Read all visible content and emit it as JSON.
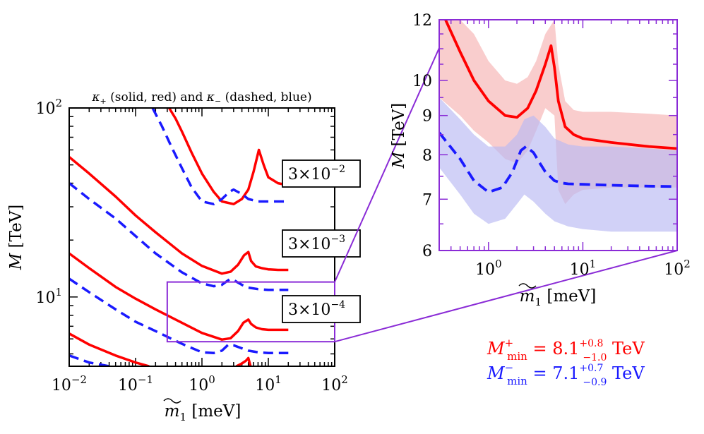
{
  "colors": {
    "red": "#ff0000",
    "blue": "#1a1aff",
    "purple": "#8a2bd6",
    "red_band": "#f6b2b2",
    "blue_band": "#b8b8f3"
  },
  "chart_data": [
    {
      "type": "line",
      "title_parts": {
        "kp": "κ",
        "kp_sub": "+",
        "mid": " (solid, red) and ",
        "km": "κ",
        "km_sub": "−",
        "end": " (dashed, blue)"
      },
      "xlabel": {
        "main": "m",
        "sub": "1",
        "unit": " [meV]"
      },
      "ylabel": {
        "main": "M",
        "unit": " [TeV]"
      },
      "xscale": "log",
      "yscale": "log",
      "xlim": [
        0.01,
        100
      ],
      "ylim": [
        4.3,
        100
      ],
      "x_ticks": [
        {
          "v": 0.01,
          "base": "10",
          "exp": "−2"
        },
        {
          "v": 0.1,
          "base": "10",
          "exp": "−1"
        },
        {
          "v": 1,
          "base": "10",
          "exp": "0"
        },
        {
          "v": 10,
          "base": "10",
          "exp": "1"
        },
        {
          "v": 100,
          "base": "10",
          "exp": "2"
        }
      ],
      "y_ticks": [
        {
          "v": 10,
          "base": "10",
          "exp": "1"
        },
        {
          "v": 100,
          "base": "10",
          "exp": "2"
        }
      ],
      "series": [
        {
          "name": "κ+ 3e-2",
          "style": "solid",
          "color": "red",
          "x": [
            0.32,
            0.4,
            0.5,
            0.7,
            1.0,
            1.5,
            2.0,
            3.0,
            4.0,
            5.0,
            6.0,
            7.2,
            8.5,
            10,
            14,
            20
          ],
          "y": [
            100,
            88,
            75,
            58,
            45,
            36,
            32,
            31,
            33,
            37,
            46,
            60,
            50,
            43,
            40,
            39
          ]
        },
        {
          "name": "κ− 3e-2",
          "style": "dashed",
          "color": "blue",
          "x": [
            0.18,
            0.25,
            0.35,
            0.5,
            0.7,
            1.0,
            1.5,
            2.0,
            2.6,
            3.0,
            4.0,
            5.0,
            7.0,
            10,
            14,
            20
          ],
          "y": [
            100,
            80,
            62,
            48,
            38,
            32,
            31,
            33,
            36,
            37,
            35,
            33,
            32,
            32,
            32,
            32
          ]
        },
        {
          "name": "κ+ 3e-3",
          "style": "solid",
          "color": "red",
          "x": [
            0.01,
            0.02,
            0.05,
            0.1,
            0.2,
            0.5,
            1.0,
            2.0,
            2.7,
            3.5,
            4.3,
            5.0,
            5.5,
            6.5,
            8,
            10,
            14,
            20
          ],
          "y": [
            55,
            45,
            34,
            27,
            22,
            17,
            14.6,
            13.3,
            13.6,
            14.8,
            16.6,
            17.3,
            15.5,
            14.5,
            14.2,
            14.0,
            13.9,
            13.9
          ]
        },
        {
          "name": "κ− 3e-3",
          "style": "dashed",
          "color": "blue",
          "x": [
            0.01,
            0.02,
            0.05,
            0.1,
            0.2,
            0.5,
            1.0,
            1.5,
            2.0,
            2.6,
            3.0,
            4.0,
            5.0,
            7.0,
            10,
            14,
            20
          ],
          "y": [
            40,
            33,
            26,
            21,
            17,
            13.5,
            11.8,
            11.4,
            11.6,
            12.4,
            12.3,
            11.6,
            11.2,
            11.0,
            10.9,
            10.9,
            10.9
          ]
        },
        {
          "name": "κ+ 3e-4",
          "style": "solid",
          "color": "red",
          "x": [
            0.01,
            0.02,
            0.05,
            0.1,
            0.2,
            0.5,
            1.0,
            2.0,
            2.7,
            3.5,
            4.2,
            5.0,
            5.5,
            6.5,
            8,
            10,
            14,
            20
          ],
          "y": [
            17,
            14.2,
            11.3,
            9.8,
            8.6,
            7.3,
            6.45,
            5.95,
            6.05,
            6.6,
            7.3,
            7.6,
            7.2,
            6.9,
            6.75,
            6.7,
            6.7,
            6.7
          ]
        },
        {
          "name": "κ− 3e-4",
          "style": "dashed",
          "color": "blue",
          "x": [
            0.01,
            0.02,
            0.05,
            0.1,
            0.2,
            0.5,
            1.0,
            1.5,
            2.0,
            2.5,
            3.0,
            4.0,
            5.0,
            7.0,
            10,
            14,
            20
          ],
          "y": [
            12.5,
            10.6,
            8.6,
            7.4,
            6.6,
            5.65,
            5.1,
            5.05,
            5.2,
            5.6,
            5.55,
            5.35,
            5.2,
            5.1,
            5.05,
            5.05,
            5.05
          ]
        },
        {
          "name": "κ+ 3e-5",
          "style": "solid",
          "color": "red",
          "x": [
            0.01,
            0.02,
            0.05,
            0.1,
            0.16
          ],
          "y": [
            6.4,
            5.6,
            4.9,
            4.5,
            4.3
          ]
        },
        {
          "name": "κ+ 3e-5 (tail)",
          "style": "solid",
          "color": "red",
          "x": [
            3.3,
            4.0,
            4.6,
            5.0,
            5.4
          ],
          "y": [
            4.3,
            4.45,
            4.6,
            4.75,
            4.3
          ]
        },
        {
          "name": "κ− 3e-5",
          "style": "dashed",
          "color": "blue",
          "x": [
            0.01,
            0.02,
            0.04
          ],
          "y": [
            4.9,
            4.5,
            4.3
          ]
        }
      ],
      "labels": [
        {
          "text": "3×10",
          "exp": "−2",
          "at_y": 32
        },
        {
          "text": "3×10",
          "exp": "−3",
          "at_y": 12.2
        },
        {
          "text": "3×10",
          "exp": "−4",
          "at_y": 5.9
        }
      ],
      "zoom_box": {
        "x": [
          0.3,
          100
        ],
        "y": [
          5.8,
          12.0
        ]
      }
    },
    {
      "type": "line",
      "subtype": "inset-zoom",
      "xlabel": {
        "main": "m",
        "sub": "1",
        "unit": " [meV]"
      },
      "ylabel": {
        "main": "M",
        "unit": " [TeV]"
      },
      "xscale": "log",
      "yscale": "log",
      "xlim": [
        0.3,
        100
      ],
      "ylim": [
        6,
        12
      ],
      "x_ticks": [
        {
          "v": 1,
          "base": "10",
          "exp": "0"
        },
        {
          "v": 10,
          "base": "10",
          "exp": "1"
        },
        {
          "v": 100,
          "base": "10",
          "exp": "2"
        }
      ],
      "y_ticks": [
        {
          "v": 6,
          "label": "6"
        },
        {
          "v": 7,
          "label": "7"
        },
        {
          "v": 8,
          "label": "8"
        },
        {
          "v": 9,
          "label": "9"
        },
        {
          "v": 10,
          "label": "10"
        },
        {
          "v": 12,
          "label": "12"
        }
      ],
      "series": [
        {
          "name": "κ+ central",
          "style": "solid",
          "color": "red",
          "x": [
            0.35,
            0.5,
            0.7,
            1.0,
            1.5,
            2.0,
            2.6,
            3.2,
            4.0,
            4.6,
            5.0,
            5.5,
            6.5,
            8,
            10,
            20,
            50,
            100
          ],
          "y": [
            12.0,
            10.9,
            10.0,
            9.4,
            9.0,
            8.95,
            9.2,
            9.7,
            10.5,
            11.1,
            10.4,
            9.4,
            8.7,
            8.5,
            8.4,
            8.3,
            8.2,
            8.15
          ]
        },
        {
          "name": "κ− central",
          "style": "dashed",
          "color": "blue",
          "x": [
            0.3,
            0.5,
            0.7,
            1.0,
            1.4,
            1.8,
            2.2,
            2.5,
            3.0,
            3.5,
            4.0,
            5.0,
            6.0,
            7.0,
            10,
            20,
            50,
            100
          ],
          "y": [
            8.55,
            7.9,
            7.4,
            7.15,
            7.25,
            7.6,
            8.1,
            8.2,
            8.05,
            7.8,
            7.6,
            7.4,
            7.35,
            7.33,
            7.32,
            7.3,
            7.28,
            7.27
          ]
        }
      ],
      "bands": [
        {
          "name": "κ+ band",
          "color": "red_band",
          "x": [
            0.3,
            0.5,
            0.7,
            1.0,
            1.5,
            2.0,
            2.6,
            3.2,
            4.0,
            5.0,
            5.5,
            6.5,
            8,
            10,
            20,
            50,
            100
          ],
          "upper": [
            12.0,
            12.0,
            11.5,
            10.6,
            10.0,
            9.9,
            10.1,
            10.6,
            11.5,
            12.0,
            10.5,
            9.4,
            9.15,
            9.1,
            9.1,
            9.05,
            9.0
          ],
          "lower": [
            9.5,
            9.0,
            8.6,
            8.3,
            7.9,
            7.8,
            8.1,
            8.6,
            9.2,
            9.0,
            7.2,
            6.9,
            7.1,
            7.2,
            7.25,
            7.25,
            7.25
          ]
        },
        {
          "name": "κ− band",
          "color": "blue_band",
          "x": [
            0.3,
            0.5,
            0.7,
            1.0,
            1.5,
            2.0,
            2.4,
            3.0,
            4.0,
            5.0,
            7.0,
            10,
            20,
            50,
            100
          ],
          "upper": [
            9.5,
            8.9,
            8.5,
            8.2,
            8.2,
            8.5,
            8.9,
            9.0,
            8.7,
            8.4,
            8.25,
            8.2,
            8.2,
            8.15,
            8.1
          ],
          "lower": [
            7.7,
            7.1,
            6.7,
            6.5,
            6.6,
            6.9,
            7.1,
            6.95,
            6.7,
            6.55,
            6.45,
            6.4,
            6.35,
            6.35,
            6.35
          ]
        }
      ]
    }
  ],
  "results": {
    "plus": {
      "M": "M",
      "sup": "+",
      "sub": "min",
      "eq": " = 8.1",
      "up": "+0.8",
      "down": "−1.0",
      "unit": " TeV"
    },
    "minus": {
      "M": "M",
      "sup": "−",
      "sub": "min",
      "eq": " = 7.1",
      "up": "+0.7",
      "down": "−0.9",
      "unit": " TeV"
    }
  }
}
